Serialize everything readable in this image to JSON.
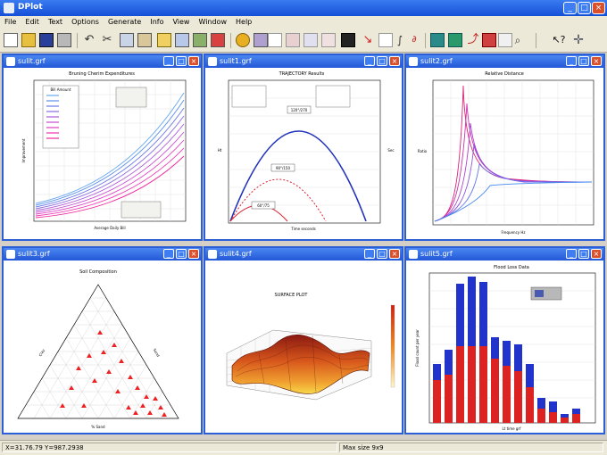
{
  "app": {
    "title": "DPlot"
  },
  "menu": {
    "items": [
      "File",
      "Edit",
      "Text",
      "Options",
      "Generate",
      "Info",
      "View",
      "Window",
      "Help"
    ]
  },
  "windows": [
    {
      "title": "sulit.grf",
      "plot_title": "Bruning Cherim Expenditures",
      "xlabel": "Average Daily Bill",
      "ylabel": "Improvement",
      "legend_title": "Bill Amount"
    },
    {
      "title": "sulit1.grf",
      "plot_title": "TRAJECTORY Results",
      "xlabel": "Time seconds",
      "ylabel": "Ht",
      "y2label": "Sec",
      "callouts": [
        "120°/270",
        "90°/150",
        "60°/75"
      ]
    },
    {
      "title": "sulit2.grf",
      "plot_title": "Relative Distance",
      "xlabel": "Frequency Hz",
      "ylabel": "Ratio"
    },
    {
      "title": "sulit3.grf",
      "plot_title": "Soil Composition",
      "axis_left": "Clay",
      "axis_right": "Sand",
      "axis_bottom": "% Sand"
    },
    {
      "title": "sulit4.grf",
      "plot_title": "SURFACE PLOT"
    },
    {
      "title": "sulit5.grf",
      "plot_title": "Flood Loss Data",
      "xlabel": "Lt time grf",
      "ylabel": "Flood count per year"
    }
  ],
  "statusbar": {
    "coords": "X=31.76.79  Y=987.2938",
    "zoom": "Max size 9x9"
  },
  "colors": {
    "accent": "#2a5fd8",
    "titlebar": "#1450d8",
    "bar_blue": "#2233cc",
    "bar_red": "#dd2222"
  }
}
